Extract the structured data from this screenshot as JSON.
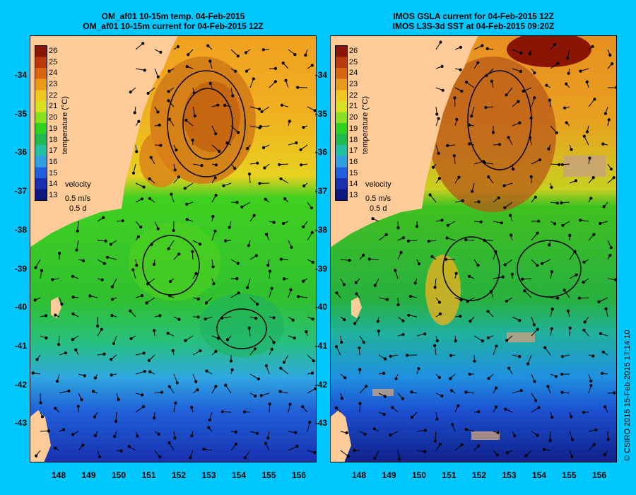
{
  "titles": {
    "left_line1": "OM_af01 10-15m temp. 04-Feb-2015",
    "left_line2": "OM_af01 10-15m current for 04-Feb-2015 12Z",
    "right_line1": "IMOS GSLA current for 04-Feb-2015 12Z",
    "right_line2": "IMOS L3S-3d SST at 04-Feb-2015 09:20Z"
  },
  "axes": {
    "lon_ticks": [
      "148",
      "149",
      "150",
      "151",
      "152",
      "153",
      "154",
      "155",
      "156"
    ],
    "lat_ticks": [
      "-34",
      "-35",
      "-36",
      "-37",
      "-38",
      "-39",
      "-40",
      "-41",
      "-42",
      "-43"
    ]
  },
  "colorbar": {
    "title": "temperature (°C)",
    "ticks": [
      "26",
      "25",
      "24",
      "23",
      "22",
      "21",
      "20",
      "19",
      "18",
      "17",
      "16",
      "15",
      "14",
      "13"
    ],
    "colors": [
      "#8a1505",
      "#b83a0a",
      "#d96510",
      "#e89a18",
      "#f0c820",
      "#d8e020",
      "#88e020",
      "#30d020",
      "#20b850",
      "#20c0a0",
      "#30a0e0",
      "#2060e0",
      "#1830b0",
      "#0c1880"
    ]
  },
  "velocity_key": {
    "title": "velocity",
    "speed": "0.5 m/s",
    "time": "0.5 d"
  },
  "credit": "© CSIRO 2015   15-Feb-2015 17:14:10",
  "colors": {
    "background": "#00c8ff",
    "land": "#ffcc99"
  }
}
